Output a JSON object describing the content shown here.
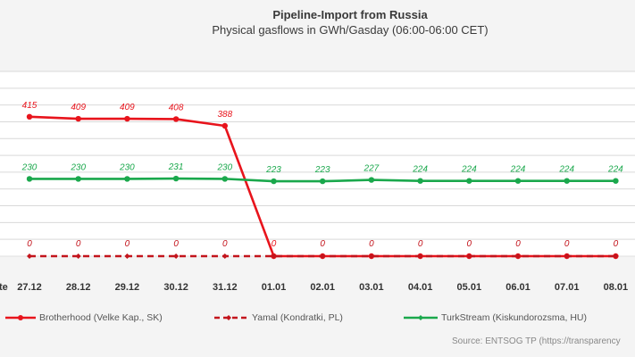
{
  "header": {
    "title": "Pipeline-Import from Russia",
    "subtitle": "Physical gasflows in GWh/Gasday (06:00-06:00 CET)"
  },
  "footer": {
    "source": "Source: ENTSOG TP (https://transparency"
  },
  "colors": {
    "red": "#e8141c",
    "green": "#1aa84c",
    "grid": "#d9d9d9"
  },
  "chart_data": {
    "type": "line",
    "title": "Pipeline-Import from Russia",
    "subtitle": "Physical gasflows in GWh/Gasday (06:00-06:00 CET)",
    "x_axis_label_fragment": "te",
    "categories": [
      "27.12",
      "28.12",
      "29.12",
      "30.12",
      "31.12",
      "01.01",
      "02.01",
      "03.01",
      "04.01",
      "05.01",
      "06.01",
      "07.01",
      "08.01"
    ],
    "ylim": [
      0,
      550
    ],
    "grid": true,
    "legend_position": "bottom",
    "series": [
      {
        "name": "Brotherhood (Velke Kap., SK)",
        "color": "#e8141c",
        "style": "solid",
        "values": [
          415,
          409,
          409,
          408,
          388,
          0,
          0,
          0,
          0,
          0,
          0,
          0,
          0
        ],
        "labels": [
          "415",
          "409",
          "409",
          "408",
          "388",
          "0",
          "",
          "",
          "",
          "",
          "",
          "",
          ""
        ]
      },
      {
        "name": "Yamal (Kondratki, PL)",
        "color": "#c3141c",
        "style": "dashed",
        "values": [
          0,
          0,
          0,
          0,
          0,
          0,
          0,
          0,
          0,
          0,
          0,
          0,
          0
        ],
        "labels": [
          "0",
          "0",
          "0",
          "0",
          "0",
          "",
          "0",
          "0",
          "0",
          "0",
          "0",
          "0",
          "0"
        ]
      },
      {
        "name": "TurkStream (Kiskundorozsma, HU)",
        "color": "#1aa84c",
        "style": "solid",
        "values": [
          230,
          230,
          230,
          231,
          230,
          223,
          223,
          227,
          224,
          224,
          224,
          224,
          224
        ],
        "labels": [
          "230",
          "230",
          "230",
          "231",
          "230",
          "223",
          "223",
          "227",
          "224",
          "224",
          "224",
          "224",
          "224"
        ]
      }
    ]
  }
}
